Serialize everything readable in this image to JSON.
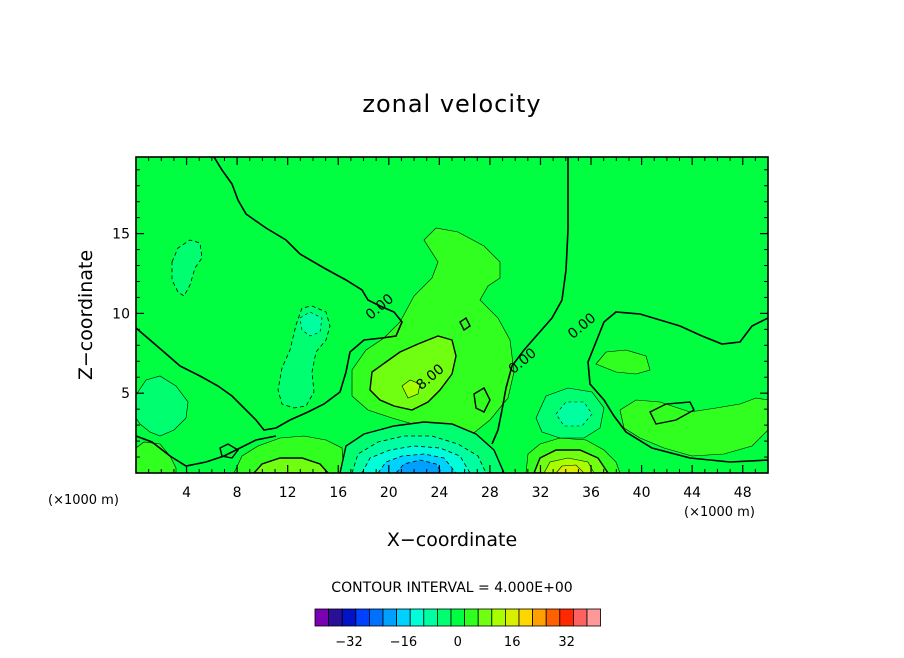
{
  "chart_data": {
    "type": "heatmap",
    "title": "zonal velocity",
    "xlabel": "X−coordinate",
    "ylabel": "Z−coordinate",
    "x_unit": "(×1000 m)",
    "y_unit": "(×1000 m)",
    "xlim": [
      0,
      50
    ],
    "ylim": [
      0,
      19.8
    ],
    "x_ticks": [
      "4",
      "8",
      "12",
      "16",
      "20",
      "24",
      "28",
      "32",
      "36",
      "40",
      "44",
      "48"
    ],
    "x_tick_values": [
      4,
      8,
      12,
      16,
      20,
      24,
      28,
      32,
      36,
      40,
      44,
      48
    ],
    "y_ticks": [
      "5",
      "10",
      "15"
    ],
    "y_tick_values": [
      5,
      10,
      15
    ],
    "contour_interval": "CONTOUR INTERVAL = 4.000E+00",
    "contour_labels": [
      {
        "text": "0.00",
        "x": 19.5,
        "z": 10.2
      },
      {
        "text": "0.00",
        "x": 30.8,
        "z": 6.8
      },
      {
        "text": "0.00",
        "x": 35.5,
        "z": 9.0
      },
      {
        "text": "8.00",
        "x": 23.5,
        "z": 5.8
      }
    ],
    "colorbar": {
      "levels": [
        -40,
        -36,
        -32,
        -28,
        -24,
        -20,
        -16,
        -12,
        -8,
        -4,
        0,
        4,
        8,
        12,
        16,
        20,
        24,
        28,
        32,
        36,
        40
      ],
      "colors": [
        "#7a00b4",
        "#2a0f99",
        "#0013c8",
        "#0040ff",
        "#0070ff",
        "#00a0ff",
        "#00d2ff",
        "#00ffd8",
        "#00ffa0",
        "#00ff70",
        "#00ff40",
        "#30ff20",
        "#70ff10",
        "#a8ff00",
        "#d8f000",
        "#ffd700",
        "#ff9f00",
        "#ff6000",
        "#ff2800",
        "#ff6060",
        "#ff9999"
      ],
      "tick_labels": [
        "−32",
        "−16",
        "0",
        "16",
        "32"
      ],
      "tick_values": [
        -32,
        -16,
        0,
        16,
        32
      ]
    },
    "regions": [
      {
        "id": "bg",
        "level": 0
      },
      {
        "id": "upper-left-neg",
        "level": -4
      },
      {
        "id": "mid-left-neg",
        "level": -4
      },
      {
        "id": "mid-left-neg-core",
        "level": -8
      },
      {
        "id": "central-pos-outer",
        "level": 4
      },
      {
        "id": "central-pos-inner",
        "level": 8
      },
      {
        "id": "central-pos-core",
        "level": 12
      },
      {
        "id": "left-low-neg",
        "level": -4
      },
      {
        "id": "left-bottom-pos",
        "level": 4
      },
      {
        "id": "bottom-left-pos",
        "level": 4
      },
      {
        "id": "bottom-left-pos-core",
        "level": 8
      },
      {
        "id": "bottom-neg-1",
        "level": -4
      },
      {
        "id": "bottom-neg-2",
        "level": -8
      },
      {
        "id": "bottom-neg-3",
        "level": -12
      },
      {
        "id": "bottom-neg-4",
        "level": -16
      },
      {
        "id": "bottom-neg-5",
        "level": -20
      },
      {
        "id": "bottom-right-pos-1",
        "level": 4
      },
      {
        "id": "bottom-right-pos-2",
        "level": 8
      },
      {
        "id": "bottom-right-pos-3",
        "level": 12
      },
      {
        "id": "bottom-right-pos-4",
        "level": 16
      },
      {
        "id": "right-neg",
        "level": -4
      },
      {
        "id": "right-neg-core",
        "level": -8
      },
      {
        "id": "right-pos",
        "level": 4
      },
      {
        "id": "right-small-pos",
        "level": 4
      }
    ]
  }
}
